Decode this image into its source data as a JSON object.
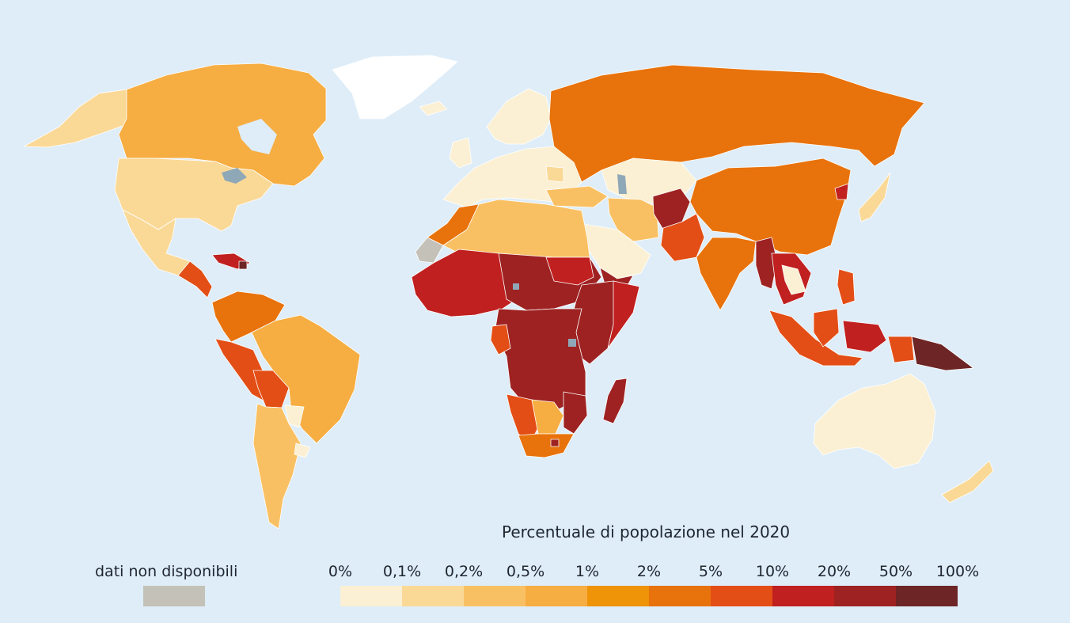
{
  "legend": {
    "title": "Percentuale di popolazione nel 2020",
    "no_data_label": "dati non disponibili",
    "no_data_color": "#c3c1b8",
    "ticks": [
      "0%",
      "0,1%",
      "0,2%",
      "0,5%",
      "1%",
      "2%",
      "5%",
      "10%",
      "20%",
      "50%",
      "100%"
    ],
    "colors": [
      "#fbf0d3",
      "#fad997",
      "#f9c063",
      "#f6ad42",
      "#ef9309",
      "#e8720b",
      "#e34e16",
      "#c0201f",
      "#9e2222",
      "#6d2525"
    ]
  },
  "map": {
    "background_color": "#deedf8",
    "greenland_color": "#ffffff",
    "border_color": "#ffffff"
  }
}
